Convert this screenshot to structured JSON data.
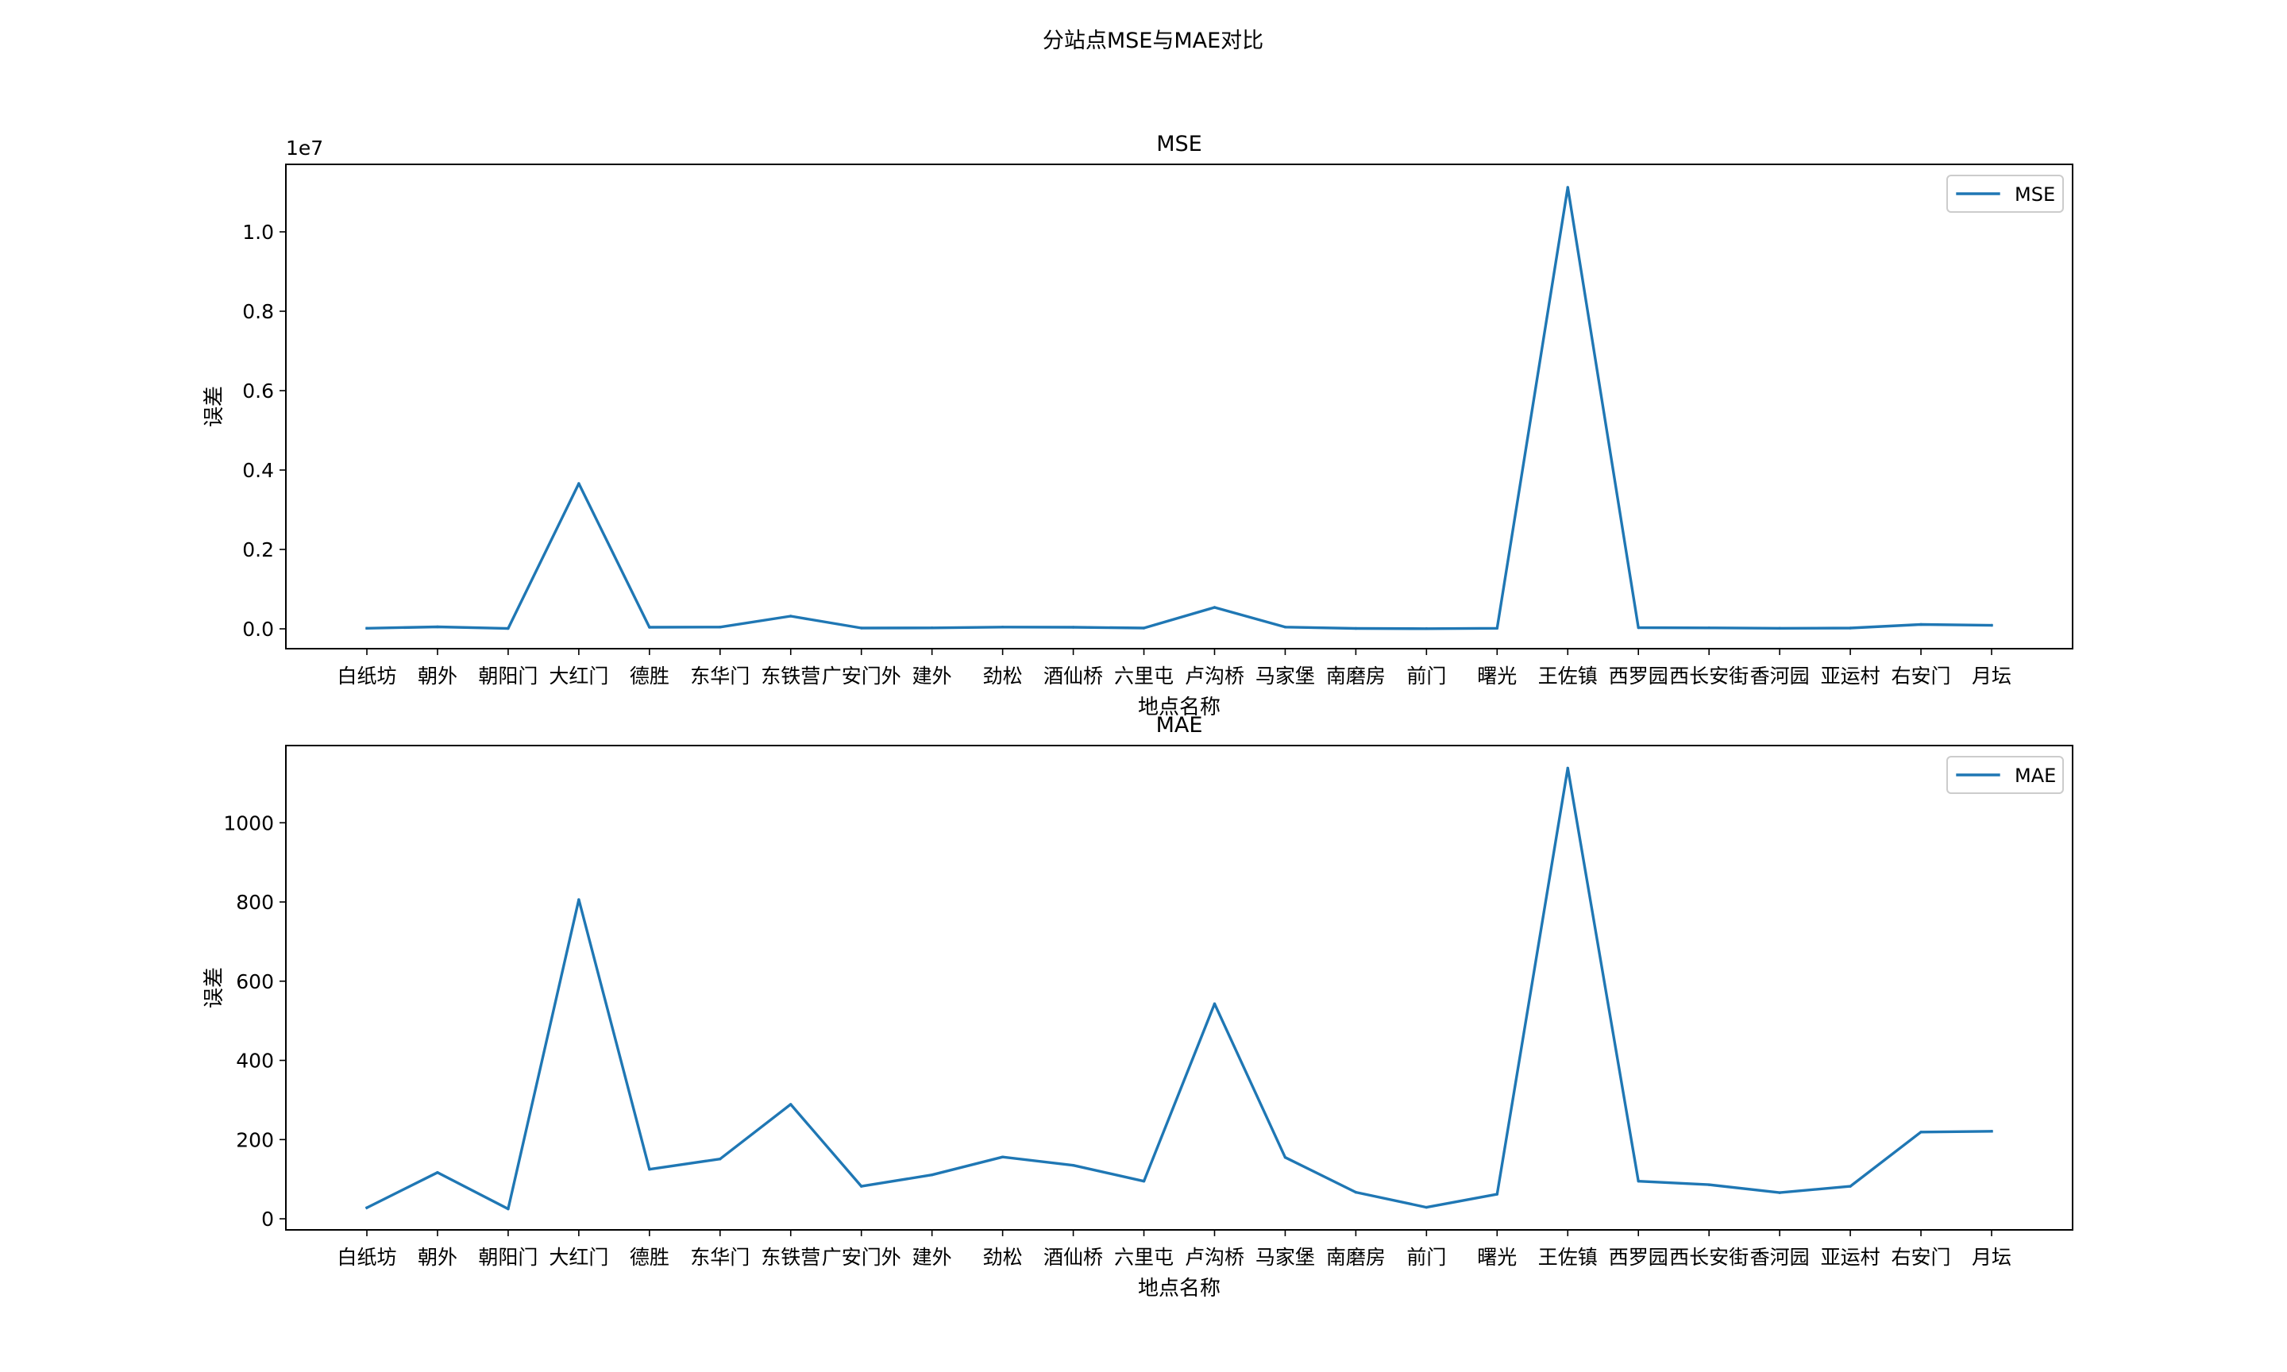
{
  "figure_title": "分站点MSE与MAE对比",
  "chart_data": [
    {
      "type": "line",
      "title": "MSE",
      "xlabel": "地点名称",
      "ylabel": "误差",
      "offset_text": "1e7",
      "categories": [
        "白纸坊",
        "朝外",
        "朝阳门",
        "大红门",
        "德胜",
        "东华门",
        "东铁营",
        "广安门外",
        "建外",
        "劲松",
        "酒仙桥",
        "六里屯",
        "卢沟桥",
        "马家堡",
        "南磨房",
        "前门",
        "曙光",
        "王佐镇",
        "西罗园",
        "西长安街",
        "香河园",
        "亚运村",
        "右安门",
        "月坛"
      ],
      "series": [
        {
          "name": "MSE",
          "values": [
            15000,
            50000,
            10000,
            3660000,
            40000,
            45000,
            320000,
            20000,
            25000,
            45000,
            40000,
            20000,
            540000,
            45000,
            10000,
            5000,
            15000,
            11120000,
            30000,
            25000,
            15000,
            20000,
            110000,
            90000
          ]
        }
      ],
      "ylim": [
        -500000,
        11700000
      ],
      "yticks": [
        0,
        2000000,
        4000000,
        6000000,
        8000000,
        10000000
      ],
      "ytick_labels": [
        "0.0",
        "0.2",
        "0.4",
        "0.6",
        "0.8",
        "1.0"
      ],
      "legend": "top-right",
      "grid": false
    },
    {
      "type": "line",
      "title": "MAE",
      "xlabel": "地点名称",
      "ylabel": "误差",
      "categories": [
        "白纸坊",
        "朝外",
        "朝阳门",
        "大红门",
        "德胜",
        "东华门",
        "东铁营",
        "广安门外",
        "建外",
        "劲松",
        "酒仙桥",
        "六里屯",
        "卢沟桥",
        "马家堡",
        "南磨房",
        "前门",
        "曙光",
        "王佐镇",
        "西罗园",
        "西长安街",
        "香河园",
        "亚运村",
        "右安门",
        "月坛"
      ],
      "series": [
        {
          "name": "MAE",
          "values": [
            28,
            117,
            25,
            806,
            125,
            151,
            289,
            82,
            111,
            156,
            135,
            95,
            543,
            155,
            67,
            29,
            62,
            1138,
            95,
            86,
            66,
            82,
            219,
            221
          ]
        }
      ],
      "ylim": [
        -28,
        1195
      ],
      "yticks": [
        0,
        200,
        400,
        600,
        800,
        1000
      ],
      "ytick_labels": [
        "0",
        "200",
        "400",
        "600",
        "800",
        "1000"
      ],
      "legend": "top-right",
      "grid": false
    }
  ]
}
